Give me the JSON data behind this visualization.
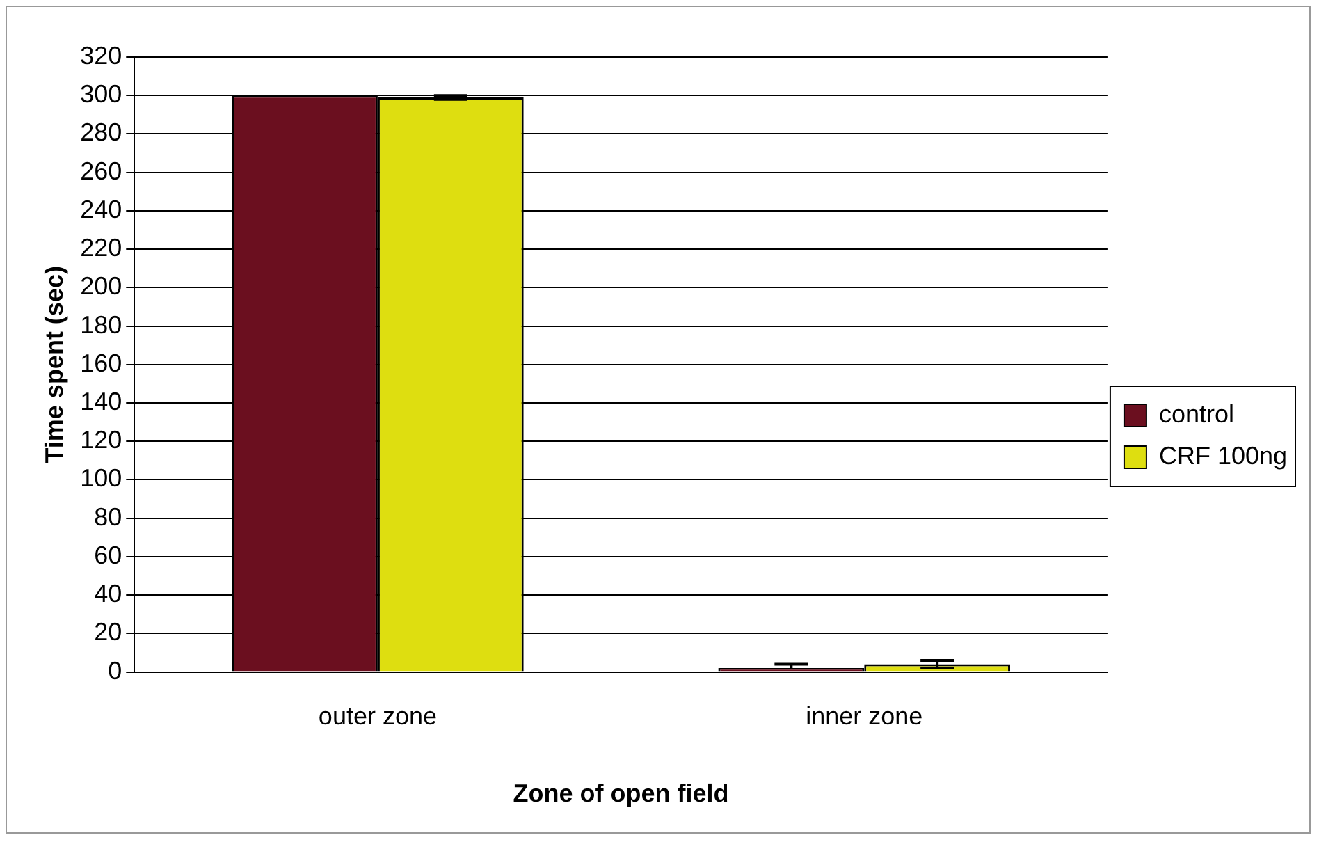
{
  "chart_data": {
    "type": "bar",
    "xlabel": "Zone of open field",
    "ylabel": "Time spent (sec)",
    "categories": [
      "outer zone",
      "inner zone"
    ],
    "series": [
      {
        "name": "control",
        "color": "#6b0f1f",
        "values": [
          300,
          2
        ],
        "errors": [
          null,
          [
            2,
            4
          ]
        ]
      },
      {
        "name": "CRF 100ng",
        "color": "#dede10",
        "values": [
          299,
          4
        ],
        "errors": [
          1,
          2
        ]
      }
    ],
    "ylim": [
      0,
      320
    ],
    "yticks": [
      0,
      20,
      40,
      60,
      80,
      100,
      120,
      140,
      160,
      180,
      200,
      220,
      240,
      260,
      280,
      300,
      320
    ],
    "grid": "y",
    "legend": "right"
  }
}
